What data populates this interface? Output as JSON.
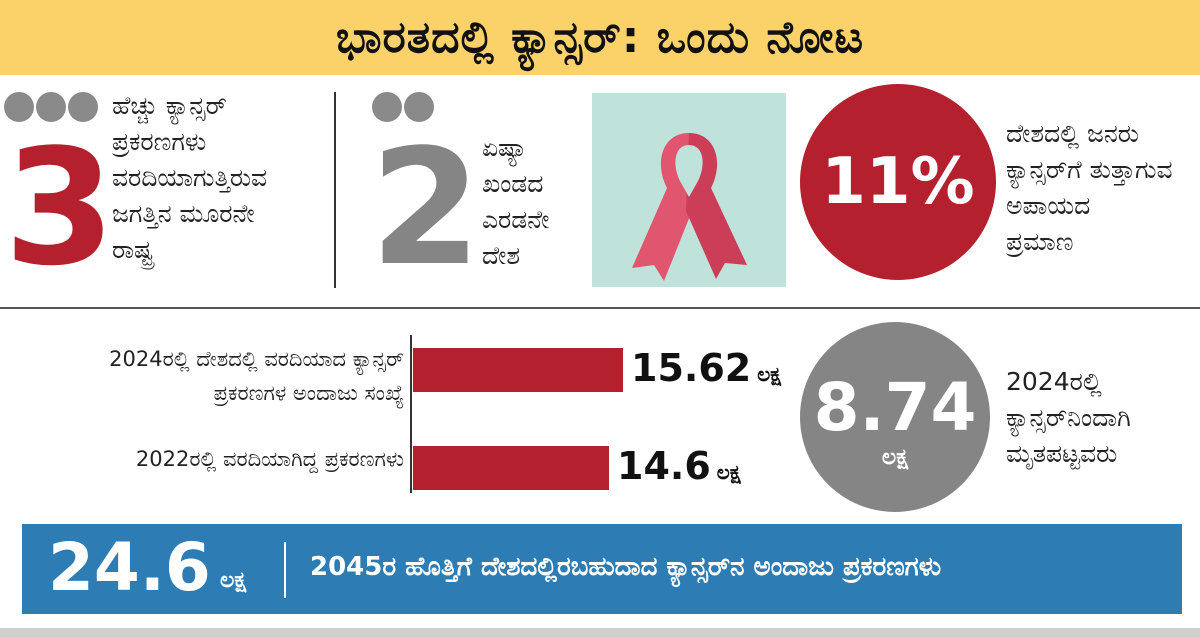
{
  "header": {
    "title": "ಭಾರತದಲ್ಲಿ ಕ್ಯಾನ್ಸರ್: ಒಂದು ನೋಟ"
  },
  "stats": {
    "rank_world": {
      "value": "3",
      "lines": [
        "ಹೆಚ್ಚು ಕ್ಯಾನ್ಸರ್",
        "ಪ್ರಕರಣಗಳು",
        "ವರದಿಯಾಗುತ್ತಿರುವ",
        "ಜಗತ್ತಿನ ಮೂರನೇ",
        "ರಾಷ್ಟ್ರ"
      ],
      "color": "#b5202e"
    },
    "rank_asia": {
      "value": "2",
      "lines": [
        "ಏಷ್ಯಾ",
        "ಖಂಡದ",
        "ಎರಡನೇ",
        "ದೇಶ"
      ],
      "color": "#858585"
    },
    "risk": {
      "value": "11%",
      "lines": [
        "ದೇಶದಲ್ಲಿ ಜನರು",
        "ಕ್ಯಾನ್ಸರ್‌ಗೆ ತುತ್ತಾಗುವ",
        "ಅಪಾಯದ",
        "ಪ್ರಮಾಣ"
      ],
      "color": "#b5202e"
    },
    "deaths": {
      "value": "8.74",
      "unit": "ಲಕ್ಷ",
      "lines": [
        "2024ರಲ್ಲಿ",
        "ಕ್ಯಾನ್ಸರ್‌ನಿಂದಾಗಿ",
        "ಮೃತಪಟ್ಟವರು"
      ],
      "color": "#858585"
    }
  },
  "chart_data": {
    "type": "bar",
    "orientation": "horizontal",
    "categories": [
      "2024ರಲ್ಲಿ ದೇಶದಲ್ಲಿ ವರದಿಯಾದ ಕ್ಯಾನ್ಸರ್ ಪ್ರಕರಣಗಳ ಅಂದಾಜು ಸಂಖ್ಯೆ",
      "2022ರಲ್ಲಿ ವರದಿಯಾಗಿದ್ದ ಪ್ರಕರಣಗಳು"
    ],
    "category_lines": [
      [
        "2024ರಲ್ಲಿ ದೇಶದಲ್ಲಿ ವರದಿಯಾದ ಕ್ಯಾನ್ಸರ್",
        "ಪ್ರಕರಣಗಳ ಅಂದಾಜು ಸಂಖ್ಯೆ"
      ],
      [
        "2022ರಲ್ಲಿ ವರದಿಯಾಗಿದ್ದ ಪ್ರಕರಣಗಳು"
      ]
    ],
    "values": [
      15.62,
      14.6
    ],
    "value_labels": [
      "15.62",
      "14.6"
    ],
    "unit": "ಲಕ್ಷ",
    "bar_color": "#b5202e"
  },
  "footer": {
    "value": "24.6",
    "unit": "ಲಕ್ಷ",
    "text": "2045ರ ಹೊತ್ತಿಗೆ ದೇಶದಲ್ಲಿರಬಹುದಾದ ಕ್ಯಾನ್ಸರ್‌ನ ಅಂದಾಜು ಪ್ರಕರಣಗಳು",
    "color": "#2d7cb4"
  }
}
